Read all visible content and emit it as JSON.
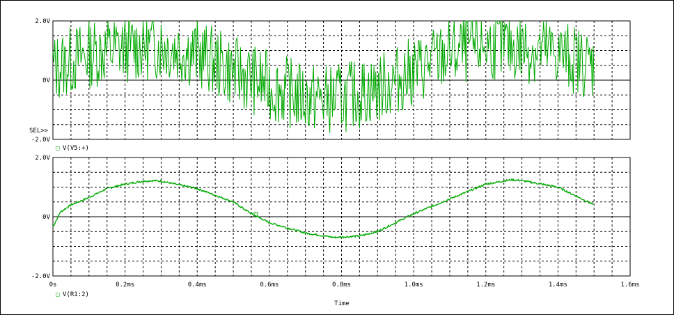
{
  "chart_data": [
    {
      "type": "line",
      "name": "top-plot",
      "title": "",
      "ylim": [
        -2.0,
        2.0
      ],
      "y_ticks": [
        "2.0V",
        "0V",
        "-2.0V"
      ],
      "sel_marker": "SEL>>",
      "legend": [
        {
          "marker": "□",
          "label": "V(V5:+)"
        }
      ],
      "color": "#00aa00",
      "series": [
        {
          "name": "V(V5:+)",
          "description_shape": "noisy high-frequency signal riding on ~1 ms period sine",
          "x_ms": [
            0.0,
            0.1,
            0.2,
            0.3,
            0.4,
            0.5,
            0.6,
            0.7,
            0.75,
            0.8,
            0.9,
            1.0,
            1.1,
            1.2,
            1.3,
            1.4,
            1.5
          ],
          "envelope_center_V": [
            0.4,
            0.9,
            1.1,
            1.2,
            0.9,
            0.3,
            -0.2,
            -0.6,
            -0.65,
            -0.6,
            -0.3,
            0.3,
            0.9,
            1.2,
            1.1,
            0.9,
            0.5
          ]
        }
      ]
    },
    {
      "type": "line",
      "name": "bottom-plot",
      "title": "",
      "ylim": [
        -2.0,
        2.0
      ],
      "y_ticks": [
        "2.0V",
        "0V",
        "-2.0V"
      ],
      "x_ticks": [
        "0s",
        "0.2ms",
        "0.4ms",
        "0.6ms",
        "0.8ms",
        "1.0ms",
        "1.2ms",
        "1.4ms",
        "1.6ms"
      ],
      "xlim": [
        0,
        1.6
      ],
      "xlabel": "Time",
      "legend": [
        {
          "marker": "□",
          "label": "V(R1:2)"
        }
      ],
      "color": "#00aa00",
      "series": [
        {
          "name": "V(R1:2)",
          "x_ms": [
            0.0,
            0.02,
            0.05,
            0.1,
            0.15,
            0.2,
            0.25,
            0.28,
            0.3,
            0.4,
            0.5,
            0.55,
            0.6,
            0.7,
            0.78,
            0.85,
            0.9,
            1.0,
            1.1,
            1.2,
            1.27,
            1.3,
            1.4,
            1.5
          ],
          "y_V": [
            -0.35,
            0.15,
            0.4,
            0.65,
            0.95,
            1.1,
            1.2,
            1.22,
            1.2,
            0.95,
            0.5,
            0.1,
            -0.2,
            -0.55,
            -0.7,
            -0.65,
            -0.5,
            0.1,
            0.6,
            1.1,
            1.25,
            1.22,
            1.0,
            0.4
          ]
        }
      ]
    }
  ]
}
